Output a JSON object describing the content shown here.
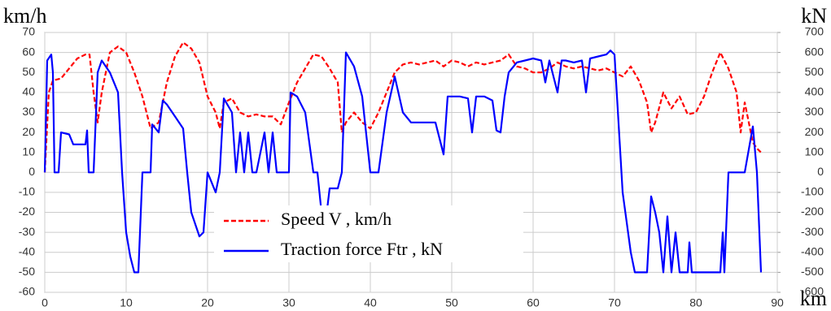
{
  "chart_data": {
    "type": "line",
    "y_label": "km/h",
    "y2_label": "kN",
    "x_label": "km",
    "xlim": [
      0,
      90
    ],
    "xticks": [
      0,
      10,
      20,
      30,
      40,
      50,
      60,
      70,
      80,
      90
    ],
    "ylim": [
      -60,
      70
    ],
    "yticks": [
      -60,
      -50,
      -40,
      -30,
      -20,
      -10,
      0,
      10,
      20,
      30,
      40,
      50,
      60,
      70
    ],
    "y2lim": [
      -600,
      700
    ],
    "y2ticks": [
      -600,
      -500,
      -400,
      -300,
      -200,
      -100,
      0,
      100,
      200,
      300,
      400,
      500,
      600,
      700
    ],
    "grid": true,
    "series": [
      {
        "name": "Speed V , km/h",
        "color": "#ff0000",
        "dash": true,
        "x": [
          0,
          0.5,
          1,
          2,
          3,
          4,
          5,
          5.5,
          6,
          6.5,
          7,
          8,
          9,
          10,
          11,
          12,
          12.5,
          13,
          14,
          15,
          16,
          17,
          18,
          19,
          20,
          21,
          21.5,
          22,
          23,
          24,
          25,
          26,
          27,
          28,
          29,
          30,
          31,
          32,
          33,
          34,
          35,
          36,
          36.5,
          37,
          38,
          39,
          40,
          41,
          42,
          43,
          44,
          45,
          46,
          47,
          48,
          49,
          50,
          51,
          52,
          53,
          54,
          55,
          56,
          57,
          58,
          59,
          60,
          61,
          62,
          63,
          64,
          65,
          66,
          67,
          68,
          69,
          70,
          71,
          72,
          73,
          74,
          74.5,
          75,
          76,
          77,
          78,
          79,
          80,
          81,
          82,
          83,
          84,
          85,
          85.5,
          86,
          86.5,
          87,
          87.5,
          88
        ],
        "values": [
          0,
          40,
          46,
          47,
          52,
          57,
          59,
          59,
          40,
          25,
          40,
          60,
          63,
          60,
          50,
          38,
          30,
          22,
          25,
          45,
          58,
          65,
          62,
          55,
          38,
          30,
          22,
          35,
          37,
          30,
          28,
          29,
          28,
          28,
          24,
          35,
          45,
          52,
          59,
          58,
          52,
          45,
          20,
          25,
          30,
          25,
          22,
          30,
          40,
          50,
          54,
          55,
          54,
          55,
          56,
          53,
          56,
          55,
          53,
          55,
          54,
          55,
          56,
          59,
          53,
          52,
          50,
          50,
          52,
          55,
          53,
          52,
          53,
          52,
          51,
          52,
          50,
          48,
          53,
          46,
          35,
          20,
          25,
          40,
          32,
          38,
          29,
          30,
          38,
          50,
          60,
          52,
          40,
          20,
          35,
          25,
          15,
          12,
          10
        ]
      },
      {
        "name": "Traction force Ftr , kN",
        "color": "#0000ff",
        "axis": "y2",
        "x": [
          0,
          0.3,
          0.8,
          1,
          1.2,
          1.7,
          2,
          3,
          3.5,
          5,
          5.2,
          5.4,
          6,
          6.5,
          7,
          8,
          9,
          9.5,
          10,
          10.5,
          11,
          11.5,
          12,
          13,
          13.2,
          14,
          14.5,
          15,
          16,
          17,
          17.5,
          18,
          19,
          19.5,
          20,
          21,
          21.5,
          22,
          23,
          23.5,
          24,
          24.5,
          25,
          25.5,
          26,
          27,
          27.5,
          28,
          28.5,
          30,
          30.2,
          31,
          32,
          33,
          33.5,
          34,
          34.5,
          35,
          36,
          36.5,
          37,
          38,
          39,
          40,
          41,
          42,
          43,
          44,
          45,
          48,
          49,
          49.5,
          51,
          52,
          52.5,
          53,
          54,
          55,
          55.5,
          56,
          56.5,
          57,
          58,
          59,
          60,
          61,
          61.5,
          62,
          63,
          63.5,
          64,
          65,
          66,
          66.5,
          67,
          68,
          69,
          69.5,
          70,
          71,
          72,
          72.5,
          74,
          74.5,
          75,
          75.5,
          76,
          76.5,
          77,
          77.5,
          78,
          79,
          79.2,
          79.5,
          82,
          83,
          83.3,
          83.5,
          84,
          86,
          87,
          87.5,
          88
        ],
        "values": [
          0,
          560,
          590,
          500,
          0,
          0,
          200,
          190,
          140,
          140,
          210,
          0,
          0,
          500,
          560,
          500,
          400,
          0,
          -300,
          -420,
          -500,
          -500,
          0,
          0,
          240,
          200,
          360,
          340,
          280,
          220,
          0,
          -200,
          -320,
          -300,
          0,
          -100,
          0,
          370,
          300,
          0,
          200,
          0,
          200,
          0,
          0,
          200,
          0,
          200,
          0,
          0,
          400,
          380,
          300,
          0,
          0,
          -200,
          -250,
          -80,
          -80,
          0,
          600,
          530,
          380,
          0,
          0,
          300,
          480,
          300,
          250,
          250,
          90,
          380,
          380,
          370,
          200,
          380,
          380,
          360,
          210,
          200,
          380,
          500,
          550,
          560,
          570,
          560,
          450,
          560,
          400,
          560,
          560,
          550,
          560,
          400,
          570,
          580,
          590,
          610,
          590,
          -100,
          -400,
          -500,
          -500,
          -120,
          -200,
          -300,
          -500,
          -220,
          -500,
          -300,
          -500,
          -500,
          -350,
          -500,
          -500,
          -500,
          -300,
          -500,
          0,
          0,
          230,
          0,
          -500
        ]
      }
    ]
  }
}
